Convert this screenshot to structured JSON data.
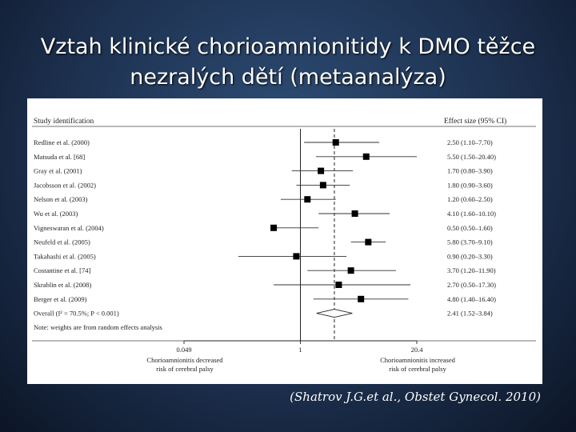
{
  "slide": {
    "title_line1": "Vztah klinické chorioamnionitidy k DMO těžce",
    "title_line2": "nezralých dětí (metaanalýza)",
    "citation": "(Shatrov J.G.et al., Obstet Gynecol. 2010)"
  },
  "chart_data": {
    "type": "forest",
    "header_left": "Study identification",
    "header_right": "Effect size (95% CI)",
    "x_scale": "log",
    "x_ticks": [
      0.049,
      1,
      20.4
    ],
    "x_tick_labels": [
      "0.049",
      "1",
      "20.4"
    ],
    "xlim": [
      0.049,
      20.4
    ],
    "reference_line": 1,
    "pooled_line": 2.41,
    "studies": [
      {
        "label": "Redline et al. (2000)",
        "es": 2.5,
        "lo": 1.1,
        "hi": 7.7,
        "text": "2.50 (1.10–7.70)"
      },
      {
        "label": "Matsuda et al. [68]",
        "es": 5.5,
        "lo": 1.5,
        "hi": 20.4,
        "text": "5.50 (1.50–20.40)"
      },
      {
        "label": "Gray et al. (2001)",
        "es": 1.7,
        "lo": 0.8,
        "hi": 3.9,
        "text": "1.70 (0.80–3.90)"
      },
      {
        "label": "Jacobsson et al. (2002)",
        "es": 1.8,
        "lo": 0.9,
        "hi": 3.6,
        "text": "1.80 (0.90–3.60)"
      },
      {
        "label": "Nelson et al. (2003)",
        "es": 1.2,
        "lo": 0.6,
        "hi": 2.5,
        "text": "1.20 (0.60–2.50)"
      },
      {
        "label": "Wu et al. (2003)",
        "es": 4.1,
        "lo": 1.6,
        "hi": 10.1,
        "text": "4.10 (1.60–10.10)"
      },
      {
        "label": "Vigneswaran et al. (2004)",
        "es": 0.5,
        "lo": 0.5,
        "hi": 1.6,
        "text": "0.50 (0.50–1.60)"
      },
      {
        "label": "Neufeld et al. (2005)",
        "es": 5.8,
        "lo": 3.7,
        "hi": 9.1,
        "text": "5.80 (3.70–9.10)"
      },
      {
        "label": "Takahashi et al. (2005)",
        "es": 0.9,
        "lo": 0.2,
        "hi": 3.3,
        "text": "0.90 (0.20–3.30)"
      },
      {
        "label": "Costantine et al. [74]",
        "es": 3.7,
        "lo": 1.2,
        "hi": 11.9,
        "text": "3.70 (1.20–11.90)"
      },
      {
        "label": "Skrablin et al. (2008)",
        "es": 2.7,
        "lo": 0.5,
        "hi": 17.3,
        "text": "2.70 (0.50–17.30)"
      },
      {
        "label": "Berger et al. (2009)",
        "es": 4.8,
        "lo": 1.4,
        "hi": 16.4,
        "text": "4.80 (1.40–16.40)"
      }
    ],
    "overall": {
      "label": "Overall (I² = 70.5%; P < 0.001)",
      "es": 2.41,
      "lo": 1.52,
      "hi": 3.84,
      "text": "2.41 (1.52–3.84)"
    },
    "note": "Note: weights are from random effects analysis",
    "left_caption": [
      "Chorioamnionitis decreased",
      "risk of cerebral palsy"
    ],
    "right_caption": [
      "Chorioamnionitis increased",
      "risk of cerebral palsy"
    ]
  }
}
